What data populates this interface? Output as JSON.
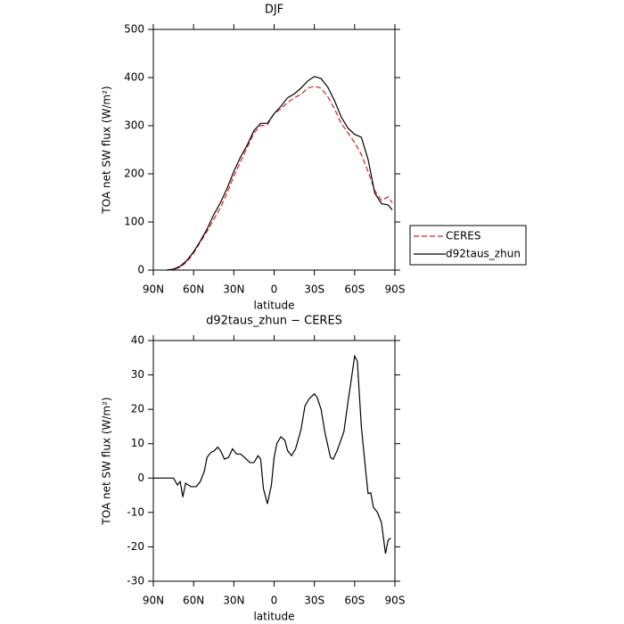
{
  "chart_data": [
    {
      "type": "line",
      "title": "DJF",
      "xlabel": "latitude",
      "ylabel": "TOA net SW flux (W/m²)",
      "x": [
        80,
        75,
        70,
        65,
        60,
        55,
        50,
        45,
        40,
        35,
        30,
        25,
        20,
        15,
        10,
        5,
        0,
        -5,
        -10,
        -15,
        -20,
        -25,
        -30,
        -35,
        -40,
        -45,
        -50,
        -55,
        -60,
        -65,
        -70,
        -75,
        -80,
        -85,
        -88
      ],
      "series": [
        {
          "name": "CERES",
          "color": "#e41a1c",
          "line_style": "dashed",
          "values": [
            0,
            1,
            6,
            17,
            35,
            58,
            80,
            105,
            130,
            160,
            195,
            225,
            255,
            285,
            300,
            302,
            325,
            335,
            348,
            358,
            365,
            378,
            382,
            378,
            360,
            335,
            305,
            285,
            265,
            240,
            205,
            165,
            145,
            152,
            140
          ]
        },
        {
          "name": "d92taus_zhun",
          "color": "#000000",
          "line_style": "solid",
          "values": [
            0,
            2,
            8,
            20,
            38,
            60,
            85,
            115,
            140,
            170,
            205,
            235,
            260,
            290,
            305,
            305,
            325,
            340,
            358,
            366,
            378,
            393,
            402,
            398,
            380,
            352,
            318,
            295,
            282,
            276,
            230,
            160,
            138,
            135,
            125
          ]
        }
      ],
      "xlim": [
        90,
        -90
      ],
      "xticks": [
        {
          "value": 90,
          "label": "90N"
        },
        {
          "value": 60,
          "label": "60N"
        },
        {
          "value": 30,
          "label": "30N"
        },
        0,
        {
          "value": -30,
          "label": "30S"
        },
        {
          "value": -60,
          "label": "60S"
        },
        {
          "value": -90,
          "label": "90S"
        }
      ],
      "ylim": [
        0,
        500
      ],
      "yticks": [
        0,
        100,
        200,
        300,
        400,
        500
      ],
      "legend": "right"
    },
    {
      "type": "line",
      "title": "d92taus_zhun − CERES",
      "xlabel": "latitude",
      "ylabel": "TOA net SW flux (W/m²)",
      "x": [
        90,
        85,
        80,
        75,
        72,
        70,
        68,
        66,
        62,
        58,
        55,
        52,
        50,
        47,
        45,
        42,
        40,
        37,
        34,
        31,
        28,
        25,
        22,
        18,
        15,
        12,
        10,
        8,
        5,
        2,
        0,
        -2,
        -5,
        -8,
        -10,
        -13,
        -16,
        -20,
        -23,
        -26,
        -30,
        -32,
        -35,
        -38,
        -42,
        -44,
        -47,
        -52,
        -55,
        -58,
        -60,
        -62,
        -65,
        -68,
        -70,
        -72,
        -74,
        -77,
        -80,
        -83,
        -85,
        -87
      ],
      "series": [
        {
          "color": "#000000",
          "line_style": "solid",
          "values": [
            0,
            0,
            0,
            0,
            -2,
            -1,
            -5.5,
            -1.5,
            -2.5,
            -2.5,
            -1,
            2,
            6,
            7.5,
            7.8,
            9,
            8,
            5.5,
            6,
            8.5,
            7,
            7,
            6,
            4.5,
            4.5,
            6.5,
            5.5,
            -3,
            -7.5,
            -2,
            6,
            10,
            12,
            11,
            8,
            6.5,
            8.5,
            14,
            21,
            23,
            24.5,
            23.5,
            20,
            13,
            6,
            5.5,
            8,
            13.5,
            22,
            30,
            35.5,
            34,
            15,
            3,
            -4.5,
            -4.3,
            -8.5,
            -10,
            -13,
            -22,
            -18,
            -17.5
          ]
        }
      ],
      "xlim": [
        90,
        -90
      ],
      "xticks": [
        {
          "value": 90,
          "label": "90N"
        },
        {
          "value": 60,
          "label": "60N"
        },
        {
          "value": 30,
          "label": "30N"
        },
        0,
        {
          "value": -30,
          "label": "30S"
        },
        {
          "value": -60,
          "label": "60S"
        },
        {
          "value": -90,
          "label": "90S"
        }
      ],
      "ylim": [
        -30,
        40
      ],
      "yticks": [
        -30,
        -20,
        -10,
        0,
        10,
        20,
        30,
        40
      ]
    }
  ]
}
